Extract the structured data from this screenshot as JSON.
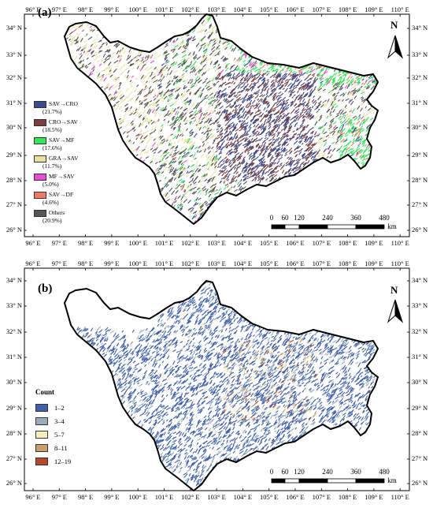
{
  "panels": [
    {
      "label": "(a)",
      "legend": [
        {
          "name": "SAV→CRO",
          "pct": "(21.7%)",
          "color": "#3c4a8f"
        },
        {
          "name": "CRO→SAV",
          "pct": "(18.5%)",
          "color": "#7a4040"
        },
        {
          "name": "SAV→MF",
          "pct": "(17.6%)",
          "color": "#33e65a"
        },
        {
          "name": "GRA→SAV",
          "pct": "(11.7%)",
          "color": "#e8e0a0"
        },
        {
          "name": "MF→SAV",
          "pct": "(5.0%)",
          "color": "#e84ed6"
        },
        {
          "name": "SAV→DF",
          "pct": "(4.6%)",
          "color": "#f07a68"
        },
        {
          "name": "Others",
          "pct": "(20.9%)",
          "color": "#555555"
        }
      ]
    },
    {
      "label": "(b)",
      "count_title": "Count",
      "legend": [
        {
          "name": "1–2",
          "color": "#3f5fa8"
        },
        {
          "name": "3–4",
          "color": "#9aabc0"
        },
        {
          "name": "5–7",
          "color": "#f5efc0"
        },
        {
          "name": "8–11",
          "color": "#c9a06a"
        },
        {
          "name": "12–19",
          "color": "#b8452e"
        }
      ]
    }
  ],
  "longitudes": [
    "96° E",
    "97° E",
    "98° E",
    "99° E",
    "100° E",
    "101° E",
    "102° E",
    "103° E",
    "104° E",
    "105° E",
    "106° E",
    "107° E",
    "108° E",
    "109° E",
    "110° E"
  ],
  "latitudes": [
    "34° N",
    "33° N",
    "32° N",
    "31° N",
    "30° N",
    "29° N",
    "28° N",
    "27° N",
    "26° N"
  ],
  "north_label": "N",
  "scale": {
    "labels": [
      "0",
      "60",
      "120",
      "240",
      "360",
      "480"
    ],
    "unit": "km"
  }
}
